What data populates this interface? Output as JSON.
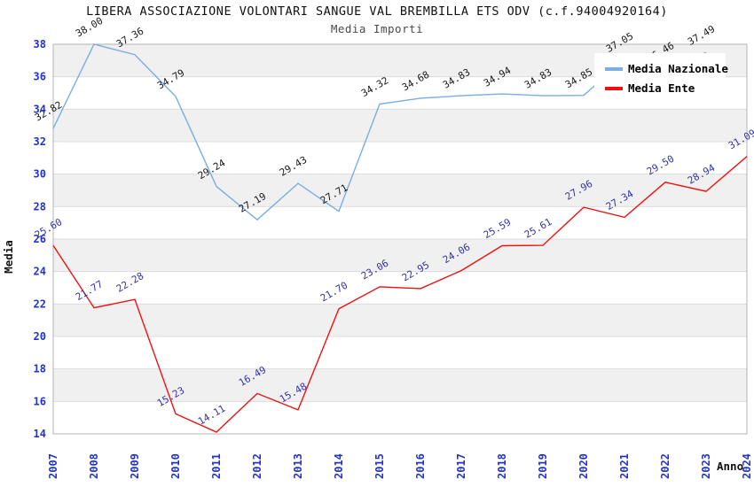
{
  "header": {
    "title": "LIBERA ASSOCIAZIONE VOLONTARI SANGUE VAL BREMBILLA ETS ODV (c.f.94004920164)",
    "subtitle": "Media Importi"
  },
  "chart_data": {
    "type": "line",
    "title": "LIBERA ASSOCIAZIONE VOLONTARI SANGUE VAL BREMBILLA ETS ODV (c.f.94004920164)",
    "subtitle": "Media Importi",
    "xlabel": "Anno",
    "ylabel": "Media",
    "ylim": [
      14,
      38
    ],
    "ytick_step": 2,
    "grid": "alternating-horizontal-bands",
    "legend_position": "top-right-inside",
    "categories": [
      "2007",
      "2008",
      "2009",
      "2010",
      "2011",
      "2012",
      "2013",
      "2014",
      "2015",
      "2016",
      "2017",
      "2018",
      "2019",
      "2020",
      "2021",
      "2022",
      "2023",
      "2024"
    ],
    "series": [
      {
        "name": "Media Nazionale",
        "color": "#7aade2",
        "label_color": "#1a1a1a",
        "values": [
          32.82,
          38.0,
          37.36,
          34.79,
          29.24,
          27.19,
          29.43,
          27.71,
          34.32,
          34.68,
          34.83,
          34.94,
          34.83,
          34.85,
          37.05,
          36.46,
          37.49,
          null
        ]
      },
      {
        "name": "Media Ente",
        "color": "#ee1111",
        "label_color": "#3333aa",
        "values": [
          25.6,
          21.77,
          22.28,
          15.23,
          14.11,
          16.49,
          15.48,
          21.7,
          23.06,
          22.95,
          24.06,
          25.59,
          25.61,
          27.96,
          27.34,
          29.5,
          28.94,
          31.09
        ]
      }
    ],
    "colors": {
      "band_gray": "#f0f0f0",
      "grid_line": "#dcdcdc",
      "plot_border": "#b3b3b3",
      "axis_tick_label": "#2233cc",
      "axis_title": "#111111",
      "legend_bg": "#ffffff",
      "legend_text": "#000000"
    },
    "legend": {
      "items": [
        {
          "label": "Media Nazionale",
          "color": "#7aade2"
        },
        {
          "label": "Media Ente",
          "color": "#ee1111"
        }
      ]
    }
  }
}
